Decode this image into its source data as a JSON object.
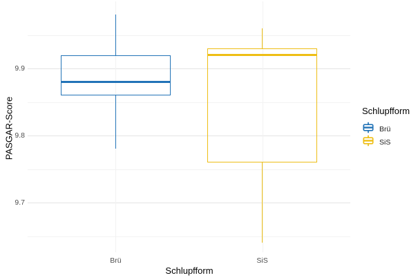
{
  "chart_data": {
    "type": "boxplot",
    "title": "",
    "xlabel": "Schlupfform",
    "ylabel": "PASGAR-Score",
    "categories": [
      "Brü",
      "SiS"
    ],
    "series": [
      {
        "name": "Brü",
        "color": "#2273B7",
        "stats": {
          "min": 9.78,
          "q1": 9.86,
          "median": 9.88,
          "q3": 9.92,
          "max": 9.98
        }
      },
      {
        "name": "SiS",
        "color": "#EEBE15",
        "stats": {
          "min": 9.64,
          "q1": 9.76,
          "median": 9.92,
          "q3": 9.93,
          "max": 9.96
        }
      }
    ],
    "y_axis": {
      "ylim": [
        9.626,
        10.0
      ],
      "major_ticks": [
        9.9,
        9.8,
        9.7
      ],
      "minor_ticks": [
        9.95,
        9.85,
        9.75,
        9.65
      ],
      "tick_decimals": 1
    },
    "x_axis": {
      "tick_labels": [
        "Brü",
        "SiS"
      ]
    },
    "legend": {
      "title": "Schlupfform",
      "position": "right",
      "entries": [
        {
          "label": "Brü",
          "color": "#2273B7",
          "icon": "boxplot-glyph"
        },
        {
          "label": "SiS",
          "color": "#EEBE15",
          "icon": "boxplot-glyph"
        }
      ]
    },
    "grid": true,
    "colors": {
      "background": "#FFFFFF",
      "grid_major": "#E4E4E4",
      "grid_minor": "#F2F2F2",
      "tick_label_text": "#4D4D4D",
      "axis_title_text": "#000000"
    }
  }
}
